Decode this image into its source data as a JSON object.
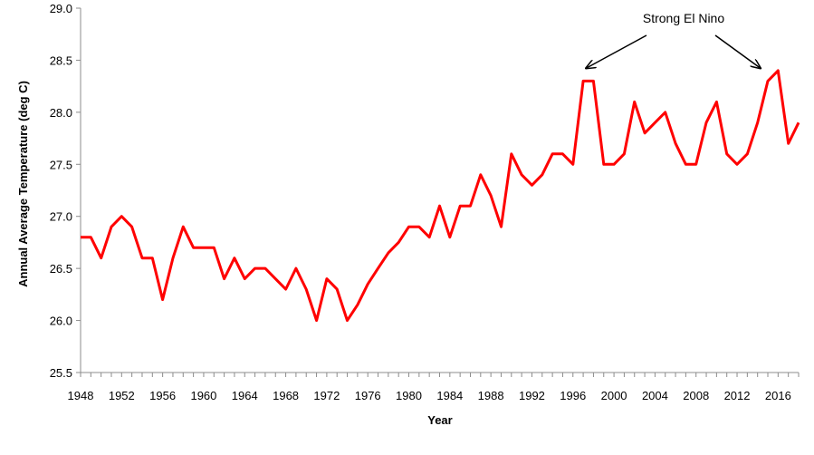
{
  "chart_data": {
    "type": "line",
    "xlabel": "Year",
    "ylabel": "Annual Average Temperature (deg C)",
    "ylim": [
      25.5,
      29.0
    ],
    "xlim": [
      1948,
      2018
    ],
    "x_ticks": [
      "1948",
      "1952",
      "1956",
      "1960",
      "1964",
      "1968",
      "1972",
      "1976",
      "1980",
      "1984",
      "1988",
      "1992",
      "1996",
      "2000",
      "2004",
      "2008",
      "2012",
      "2016"
    ],
    "y_ticks": [
      "25.5",
      "26.0",
      "26.5",
      "27.0",
      "27.5",
      "28.0",
      "28.5",
      "29.0"
    ],
    "grid": false,
    "legend": "none",
    "series": [
      {
        "color": "#ff0000",
        "x": [
          1948,
          1949,
          1950,
          1951,
          1952,
          1953,
          1954,
          1955,
          1956,
          1957,
          1958,
          1959,
          1960,
          1961,
          1962,
          1963,
          1964,
          1965,
          1966,
          1967,
          1968,
          1969,
          1970,
          1971,
          1972,
          1973,
          1974,
          1975,
          1976,
          1977,
          1978,
          1979,
          1980,
          1981,
          1982,
          1983,
          1984,
          1985,
          1986,
          1987,
          1988,
          1989,
          1990,
          1991,
          1992,
          1993,
          1994,
          1995,
          1996,
          1997,
          1998,
          1999,
          2000,
          2001,
          2002,
          2003,
          2004,
          2005,
          2006,
          2007,
          2008,
          2009,
          2010,
          2011,
          2012,
          2013,
          2014,
          2015,
          2016,
          2017,
          2018
        ],
        "y": [
          26.8,
          26.8,
          26.6,
          26.9,
          27.0,
          26.9,
          26.6,
          26.6,
          26.2,
          26.6,
          26.9,
          26.7,
          26.7,
          26.7,
          26.4,
          26.6,
          26.4,
          26.5,
          26.5,
          26.4,
          26.3,
          26.5,
          26.3,
          26.0,
          26.4,
          26.3,
          26.0,
          26.15,
          26.35,
          26.5,
          26.65,
          26.75,
          26.9,
          26.9,
          26.8,
          27.1,
          26.8,
          27.1,
          27.1,
          27.4,
          27.2,
          26.9,
          27.6,
          27.4,
          27.3,
          27.4,
          27.6,
          27.6,
          27.5,
          28.3,
          28.3,
          27.5,
          27.5,
          27.6,
          28.1,
          27.8,
          27.9,
          28.0,
          27.7,
          27.5,
          27.5,
          27.9,
          28.1,
          27.6,
          27.5,
          27.6,
          27.9,
          28.3,
          28.4,
          27.7,
          27.9
        ]
      }
    ],
    "annotations": [
      {
        "text": "Strong El Nino",
        "arrow_targets": [
          1997,
          2015
        ]
      }
    ],
    "colors": {
      "axis": "#8c8c8c",
      "text": "#000000",
      "arrow": "#000000"
    }
  }
}
